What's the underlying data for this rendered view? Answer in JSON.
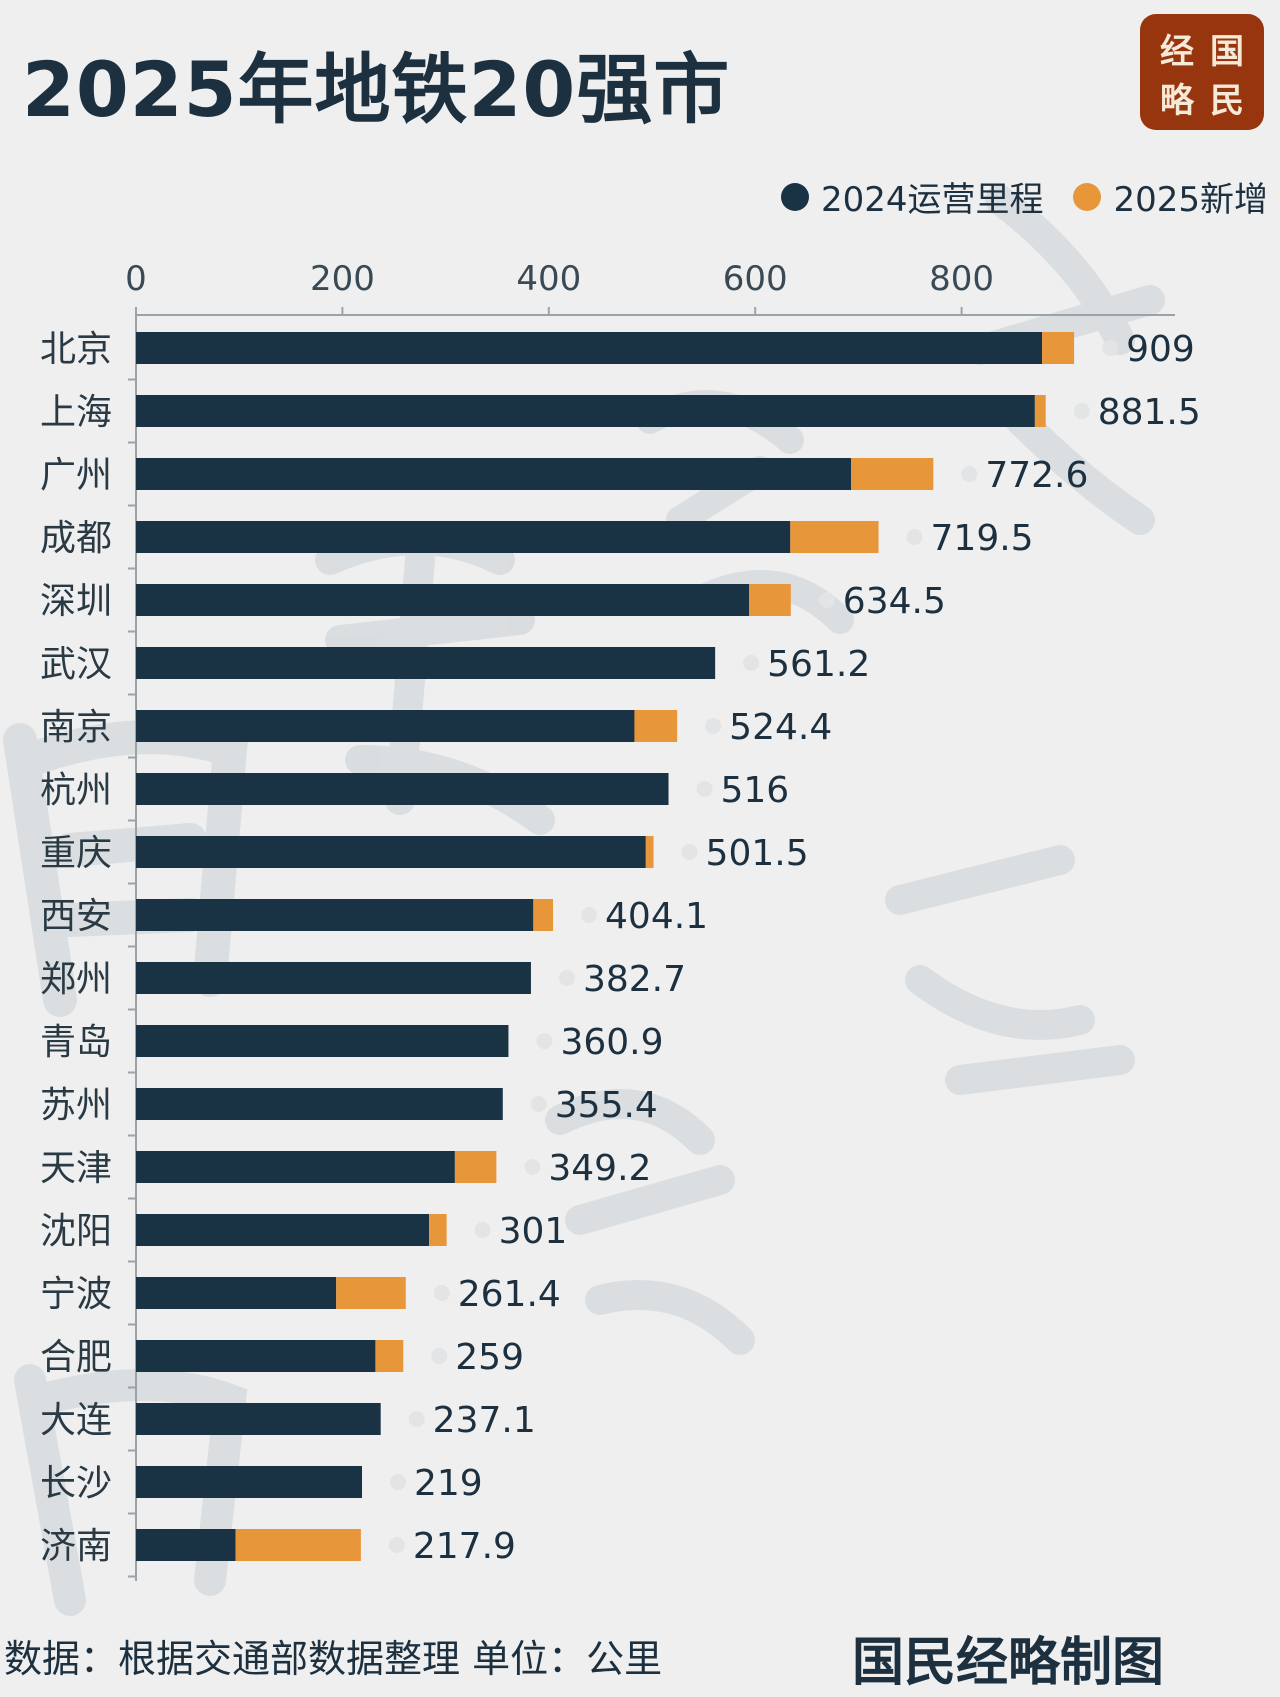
{
  "title": "2025年地铁20强市",
  "logo": {
    "chars": [
      "经",
      "国",
      "略",
      "民"
    ]
  },
  "watermark": "国民经略",
  "footer": {
    "source": "数据：根据交通部数据整理 单位：公里",
    "signature": "国民经略制图"
  },
  "chart_data": {
    "type": "bar",
    "orientation": "horizontal",
    "stacked": true,
    "title": "2025年地铁20强市",
    "unit": "公里",
    "xlim": [
      0,
      900
    ],
    "xticks": [
      0,
      200,
      400,
      600,
      800
    ],
    "legend_position": "top-right",
    "grid": false,
    "categories": [
      "北京",
      "上海",
      "广州",
      "成都",
      "深圳",
      "武汉",
      "南京",
      "杭州",
      "重庆",
      "西安",
      "郑州",
      "青岛",
      "苏州",
      "天津",
      "沈阳",
      "宁波",
      "合肥",
      "大连",
      "长沙",
      "济南"
    ],
    "totals": [
      909,
      881.5,
      772.6,
      719.5,
      634.5,
      561.2,
      524.4,
      516,
      501.5,
      404.1,
      382.7,
      360.9,
      355.4,
      349.2,
      301,
      261.4,
      259,
      237.1,
      219,
      217.9
    ],
    "total_labels": [
      "909",
      "881.5",
      "772.6",
      "719.5",
      "634.5",
      "561.2",
      "524.4",
      "516",
      "501.5",
      "404.1",
      "382.7",
      "360.9",
      "355.4",
      "349.2",
      "301",
      "261.4",
      "259",
      "237.1",
      "219",
      "217.9"
    ],
    "series": [
      {
        "name": "2024运营里程",
        "color": "#1a3344",
        "values": [
          878,
          871,
          693,
          634,
          594,
          561.2,
          483,
          516,
          494,
          385,
          382.7,
          360.9,
          355.4,
          309,
          284,
          194,
          232,
          237.1,
          219,
          96.4
        ]
      },
      {
        "name": "2025新增",
        "color": "#e8963a",
        "values": [
          31,
          10.5,
          79.6,
          85.5,
          40.5,
          0,
          41.4,
          0,
          7.5,
          19.1,
          0,
          0,
          0,
          40.2,
          17,
          67.4,
          27,
          0,
          0,
          121.5
        ]
      }
    ]
  }
}
